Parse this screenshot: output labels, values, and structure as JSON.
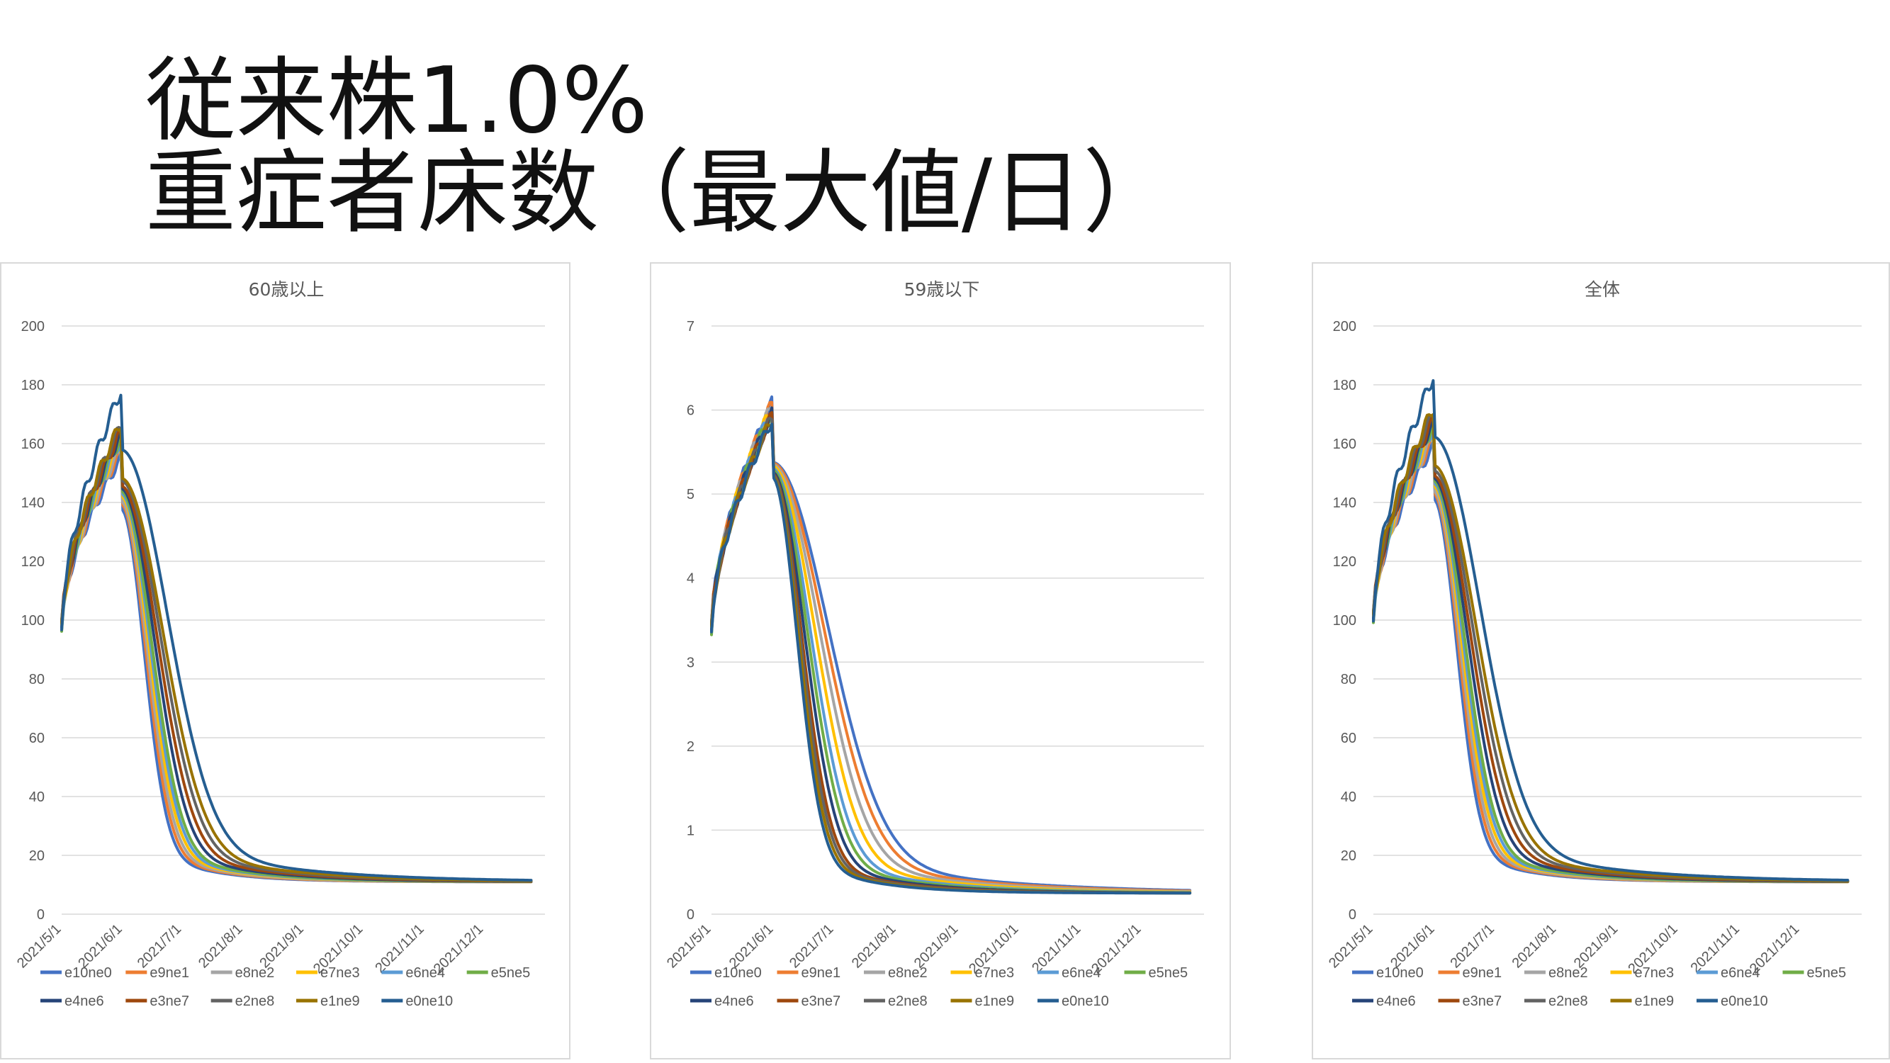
{
  "page": {
    "title_line1": "従来株1.0%",
    "title_line2": "重症者床数（最大値/日）"
  },
  "legend_order": [
    "e10ne0",
    "e9ne1",
    "e8ne2",
    "e7ne3",
    "e6ne4",
    "e5ne5",
    "e4ne6",
    "e3ne7",
    "e2ne8",
    "e1ne9",
    "e0ne10"
  ],
  "series_colors": {
    "e10ne0": "#4472C4",
    "e9ne1": "#ED7D31",
    "e8ne2": "#A5A5A5",
    "e7ne3": "#FFC000",
    "e6ne4": "#5B9BD5",
    "e5ne5": "#70AD47",
    "e4ne6": "#264478",
    "e3ne7": "#9E480E",
    "e2ne8": "#636363",
    "e1ne9": "#997300",
    "e0ne10": "#255E91"
  },
  "chart_data": [
    {
      "type": "line",
      "title": "60歳以上",
      "ylim": [
        0,
        200
      ],
      "yticks": [
        0,
        20,
        40,
        60,
        80,
        100,
        120,
        140,
        160,
        180,
        200
      ],
      "xlim": [
        "2021/5/1",
        "2022/1/1"
      ],
      "xticks": [
        "2021/5/1",
        "2021/6/1",
        "2021/7/1",
        "2021/8/1",
        "2021/9/1",
        "2021/10/1",
        "2021/11/1",
        "2021/12/1"
      ],
      "grid": true,
      "legend": "bottom",
      "start": 98,
      "plateau": 11,
      "peaks": [
        155,
        157,
        158,
        160,
        161,
        162,
        163,
        164,
        166,
        167,
        178
      ],
      "widths": [
        16,
        17,
        18,
        19,
        20,
        21,
        23,
        25,
        27,
        29,
        32
      ],
      "series": [
        {
          "name": "e10ne0",
          "peak": 155,
          "final": 11
        },
        {
          "name": "e9ne1",
          "peak": 157,
          "final": 11
        },
        {
          "name": "e8ne2",
          "peak": 158,
          "final": 11
        },
        {
          "name": "e7ne3",
          "peak": 160,
          "final": 11
        },
        {
          "name": "e6ne4",
          "peak": 161,
          "final": 11
        },
        {
          "name": "e5ne5",
          "peak": 162,
          "final": 11
        },
        {
          "name": "e4ne6",
          "peak": 163,
          "final": 11
        },
        {
          "name": "e3ne7",
          "peak": 164,
          "final": 11
        },
        {
          "name": "e2ne8",
          "peak": 166,
          "final": 11
        },
        {
          "name": "e1ne9",
          "peak": 167,
          "final": 11
        },
        {
          "name": "e0ne10",
          "peak": 178,
          "final": 11
        }
      ]
    },
    {
      "type": "line",
      "title": "59歳以下",
      "ylim": [
        0,
        7
      ],
      "yticks": [
        0,
        1,
        2,
        3,
        4,
        5,
        6,
        7
      ],
      "xlim": [
        "2021/5/1",
        "2022/1/1"
      ],
      "xticks": [
        "2021/5/1",
        "2021/6/1",
        "2021/7/1",
        "2021/8/1",
        "2021/9/1",
        "2021/10/1",
        "2021/11/1",
        "2021/12/1"
      ],
      "grid": true,
      "legend": "bottom",
      "start": 3.4,
      "plateau": 0.25,
      "peaks": [
        6.08,
        6.07,
        6.05,
        6.03,
        6.0,
        5.98,
        5.95,
        5.93,
        5.92,
        5.9,
        5.88
      ],
      "widths": [
        38,
        35,
        32,
        29,
        26,
        24,
        22,
        20,
        19,
        18,
        17
      ],
      "series": [
        {
          "name": "e10ne0",
          "peak": 6.08,
          "final": 0.25
        },
        {
          "name": "e9ne1",
          "peak": 6.07,
          "final": 0.25
        },
        {
          "name": "e8ne2",
          "peak": 6.05,
          "final": 0.25
        },
        {
          "name": "e7ne3",
          "peak": 6.03,
          "final": 0.25
        },
        {
          "name": "e6ne4",
          "peak": 6.0,
          "final": 0.25
        },
        {
          "name": "e5ne5",
          "peak": 5.98,
          "final": 0.25
        },
        {
          "name": "e4ne6",
          "peak": 5.95,
          "final": 0.25
        },
        {
          "name": "e3ne7",
          "peak": 5.93,
          "final": 0.25
        },
        {
          "name": "e2ne8",
          "peak": 5.92,
          "final": 0.25
        },
        {
          "name": "e1ne9",
          "peak": 5.9,
          "final": 0.25
        },
        {
          "name": "e0ne10",
          "peak": 5.88,
          "final": 0.25
        }
      ]
    },
    {
      "type": "line",
      "title": "全体",
      "ylim": [
        0,
        200
      ],
      "yticks": [
        0,
        20,
        40,
        60,
        80,
        100,
        120,
        140,
        160,
        180,
        200
      ],
      "xlim": [
        "2021/5/1",
        "2022/1/1"
      ],
      "xticks": [
        "2021/5/1",
        "2021/6/1",
        "2021/7/1",
        "2021/8/1",
        "2021/9/1",
        "2021/10/1",
        "2021/11/1",
        "2021/12/1"
      ],
      "grid": true,
      "legend": "bottom",
      "start": 101,
      "plateau": 11,
      "peaks": [
        159,
        161,
        162,
        164,
        165,
        166,
        167,
        168,
        170,
        172,
        183
      ],
      "widths": [
        16,
        17,
        18,
        19,
        20,
        21,
        23,
        25,
        27,
        29,
        32
      ],
      "series": [
        {
          "name": "e10ne0",
          "peak": 159,
          "final": 11
        },
        {
          "name": "e9ne1",
          "peak": 161,
          "final": 11
        },
        {
          "name": "e8ne2",
          "peak": 162,
          "final": 11
        },
        {
          "name": "e7ne3",
          "peak": 164,
          "final": 11
        },
        {
          "name": "e6ne4",
          "peak": 165,
          "final": 11
        },
        {
          "name": "e5ne5",
          "peak": 166,
          "final": 11
        },
        {
          "name": "e4ne6",
          "peak": 167,
          "final": 11
        },
        {
          "name": "e3ne7",
          "peak": 168,
          "final": 11
        },
        {
          "name": "e2ne8",
          "peak": 170,
          "final": 11
        },
        {
          "name": "e1ne9",
          "peak": 172,
          "final": 11
        },
        {
          "name": "e0ne10",
          "peak": 183,
          "final": 11
        }
      ]
    }
  ]
}
